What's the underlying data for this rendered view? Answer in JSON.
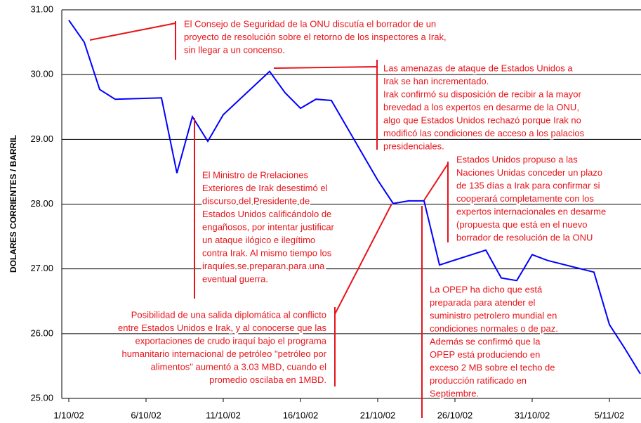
{
  "chart_data": {
    "type": "line",
    "y_label": "DOLARES CORRIENTES / BARRIL",
    "x": [
      "1/10/02",
      "2/10/02",
      "3/10/02",
      "4/10/02",
      "7/10/02",
      "8/10/02",
      "9/10/02",
      "10/10/02",
      "11/10/02",
      "14/10/02",
      "15/10/02",
      "16/10/02",
      "17/10/02",
      "18/10/02",
      "21/10/02",
      "22/10/02",
      "23/10/02",
      "24/10/02",
      "25/10/02",
      "28/10/02",
      "29/10/02",
      "30/10/02",
      "31/10/02",
      "1/11/02",
      "4/11/02",
      "5/11/02",
      "6/11/02",
      "7/11/02"
    ],
    "values": [
      30.84,
      30.5,
      29.77,
      29.62,
      29.64,
      28.48,
      29.35,
      28.97,
      29.38,
      30.05,
      29.72,
      29.48,
      29.62,
      29.6,
      28.37,
      28.01,
      28.05,
      28.05,
      27.06,
      27.29,
      26.86,
      26.82,
      27.22,
      27.13,
      26.95,
      26.14,
      25.77,
      25.38
    ],
    "color": "#0000ff",
    "xlim": [
      "1/10/02",
      "7/11/02"
    ],
    "xticks": [
      "1/10/02",
      "6/10/02",
      "11/10/02",
      "16/10/02",
      "21/10/02",
      "26/10/02",
      "31/10/02",
      "5/11/02"
    ],
    "ylim": [
      25,
      31
    ],
    "yticks": [
      {
        "value": 25,
        "label": "25.00"
      },
      {
        "value": 26,
        "label": "26.00"
      },
      {
        "value": 27,
        "label": "27.00"
      },
      {
        "value": 28,
        "label": "28.00"
      },
      {
        "value": 29,
        "label": "29.00"
      },
      {
        "value": 30,
        "label": "30.00"
      },
      {
        "value": 31,
        "label": "31.00"
      }
    ],
    "grid": true,
    "annotation_color": "#e8141a",
    "annotations": [
      {
        "lines": [
          "El Consejo de Seguridad de la ONU discutía el borrador de un",
          "proyecto de resolución sobre el retorno de los inspectores a Irak,",
          "sin llegar a un concenso."
        ]
      },
      {
        "lines": [
          "Las amenazas de ataque de Estados Unidos a",
          "Irak se han incrementado.",
          "Irak confirmó su disposición de recibir a la mayor",
          "brevedad a los expertos en desarme de la ONU,",
          "algo que Estados Unidos rechazó porque Irak no",
          "modificó las condiciones de acceso a los palacios",
          "presidenciales."
        ]
      },
      {
        "lines": [
          "Estados Unidos propuso a las",
          "Naciones Unidas conceder un plazo",
          "de 135 días a Irak para confirmar si",
          "cooperará completamente con los",
          "expertos internacionales en desarme",
          "(propuesta que está en el nuevo",
          "borrador de resolución de la ONU"
        ]
      },
      {
        "lines": [
          "El Ministro de Rrelaciones",
          "Exteriores de Irak desestimó el",
          "discurso del Presidente de",
          "Estados Unidos calificándolo de",
          "engañosos, por intentar justificar",
          "un ataque ilógico e ilegítimo",
          "contra Irak. Al mismo tiempo los",
          "iraquíes se preparan para una",
          "eventual guerra."
        ]
      },
      {
        "lines": [
          "Posibilidad de una salida diplomática al conflicto",
          "entre Estados Unidos e Irak, y al conocerse que las",
          "exportaciones de crudo iraquí bajo el programa",
          "humanitario internacional de petróleo \"petróleo por",
          "alimentos\" aumentó a 3.03 MBD, cuando el",
          "promedio oscilaba en 1MBD."
        ]
      },
      {
        "lines": [
          "La OPEP ha dicho que está",
          "preparada para atender el",
          "suministro petrolero mundial en",
          "condiciones normales o de paz.",
          "Además se confirmó que la",
          "OPEP está produciendo en",
          "exceso 2 MB sobre el techo de",
          "producción ratificado en",
          "Septiembre."
        ]
      }
    ]
  }
}
